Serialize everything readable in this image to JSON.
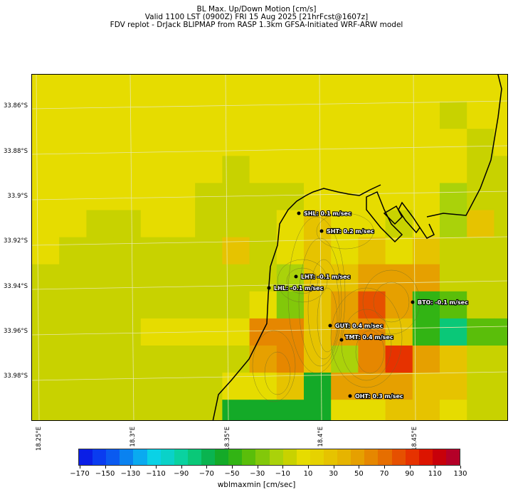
{
  "header": {
    "line1": "BL Max. Up/Down Motion [cm/s]",
    "line2": "Valid 1100 LST (0900Z) FRI 15 Aug 2025 [21hrFcst@1607z]",
    "line3": "FDV replot - DrJack BLIPMAP from RASP 1.3km GFSA-Initiated WRF-ARW model"
  },
  "map": {
    "lat_labels": [
      "33.86°S",
      "33.88°S",
      "33.9°S",
      "33.92°S",
      "33.94°S",
      "33.96°S",
      "33.98°S"
    ],
    "lon_labels": [
      "18.25°E",
      "18.3°E",
      "18.35°E",
      "18.4°E",
      "18.45°E"
    ],
    "stations": [
      {
        "code": "SHL",
        "label": "SHL: 0.1 m/sec"
      },
      {
        "code": "SHT",
        "label": "SHT: 0.2 m/sec"
      },
      {
        "code": "LHT",
        "label": "LHT: -0.1 m/sec"
      },
      {
        "code": "LHL",
        "label": "LHL: -0.1 m/sec"
      },
      {
        "code": "BTO",
        "label": "BTO: -0.1 m/sec"
      },
      {
        "code": "GUT",
        "label": "GUT: 0.4 m/sec"
      },
      {
        "code": "TMT",
        "label": "TMT: 0.4 m/sec"
      },
      {
        "code": "OHT",
        "label": "OHT: 0.3 m/sec"
      }
    ]
  },
  "colorbar": {
    "label": "wblmaxmin [cm/sec]",
    "ticks": [
      "−170",
      "−150",
      "−130",
      "−110",
      "−90",
      "−70",
      "−50",
      "−30",
      "−10",
      "10",
      "30",
      "50",
      "70",
      "90",
      "110",
      "130"
    ],
    "colors": [
      "#0a1ee6",
      "#0a3cf0",
      "#0a5af0",
      "#0a82f0",
      "#0aaaf0",
      "#0ad2e6",
      "#0ad2c8",
      "#0ad2a0",
      "#0ac878",
      "#0ab450",
      "#14aa28",
      "#32b414",
      "#5abe0a",
      "#82c80a",
      "#aad20a",
      "#c8d200",
      "#e6dc00",
      "#e6d200",
      "#e6c300",
      "#e6b400",
      "#e6a000",
      "#e68700",
      "#e66e00",
      "#e65000",
      "#e63200",
      "#dc1400",
      "#c8000a",
      "#b40028"
    ]
  }
}
